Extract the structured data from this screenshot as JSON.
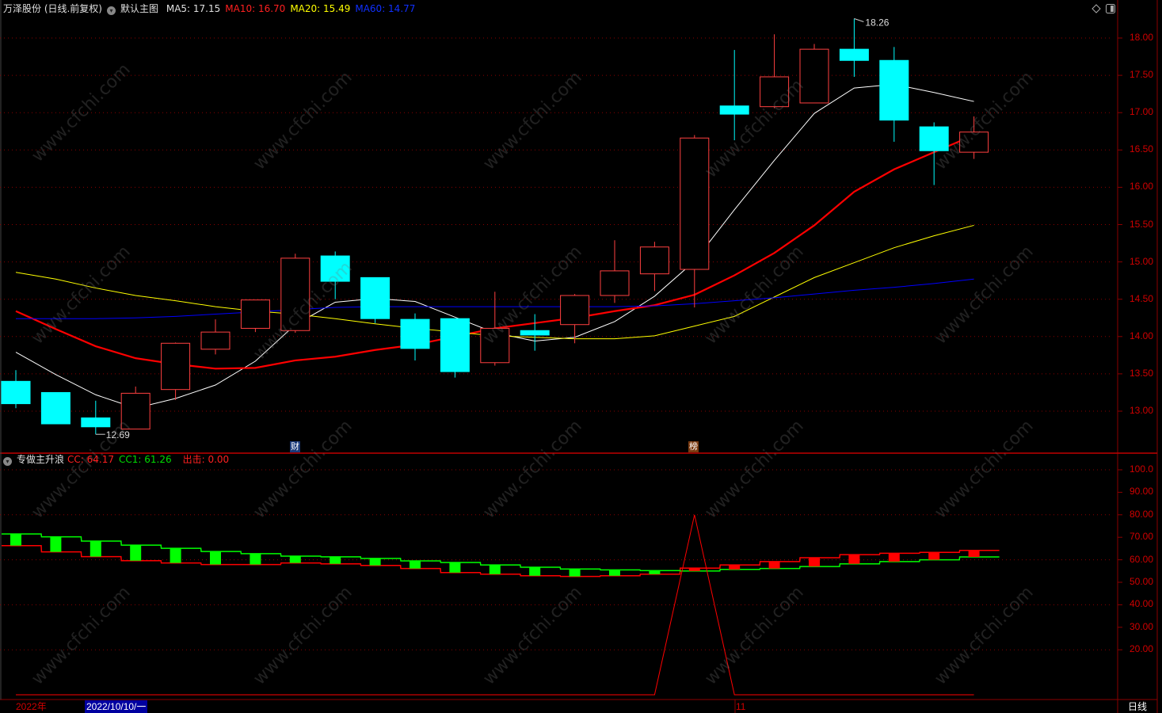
{
  "header": {
    "stock": "万泽股份 (日线.前复权)",
    "template": "默认主图",
    "ma5": "MA5: 17.15",
    "ma10": "MA10: 16.70",
    "ma20": "MA20: 15.49",
    "ma60": "MA60: 14.77"
  },
  "indicator": {
    "name": "专做主升浪",
    "cc": "CC: 64.17",
    "cc1": "CC1: 61.26",
    "strike": "出击: 0.00"
  },
  "colors": {
    "up": "#ff4040",
    "down": "#00ffff",
    "ma5": "#ffffff",
    "ma10": "#ff0000",
    "ma20": "#ffff00",
    "ma60": "#0000ff",
    "grid": "#8b0000",
    "axis": "#d00000",
    "cc": "#ff0000",
    "cc1": "#00ff00"
  },
  "icons": {
    "top_right": [
      "diamond-icon",
      "panel-toggle-icon"
    ],
    "collapse": "chevron-down-icon"
  },
  "main_axis": {
    "ticks": [
      "18.00",
      "17.50",
      "17.00",
      "16.50",
      "16.00",
      "15.50",
      "15.00",
      "14.50",
      "14.00",
      "13.50",
      "13.00"
    ]
  },
  "lower_axis": {
    "ticks": [
      "100.0",
      "90.00",
      "80.00",
      "70.00",
      "60.00",
      "50.00",
      "40.00",
      "30.00",
      "20.00"
    ]
  },
  "annotations": {
    "high": "18.26",
    "low": "12.69"
  },
  "markers": [
    {
      "label": "财",
      "candle": 7
    },
    {
      "label": "榜",
      "candle": 17
    }
  ],
  "bottom_axis": {
    "year": "2022年",
    "cursor_date": "2022/10/10/一",
    "month": "11",
    "period": "日线"
  },
  "watermark": "www.cfchi.com",
  "chart_data": [
    {
      "type": "candlestick",
      "ylim": [
        12.5,
        18.3
      ],
      "candles": [
        {
          "o": 13.4,
          "h": 13.55,
          "l": 13.04,
          "c": 13.1
        },
        {
          "o": 13.25,
          "h": 13.25,
          "l": 12.83,
          "c": 12.83
        },
        {
          "o": 12.91,
          "h": 13.14,
          "l": 12.69,
          "c": 12.79
        },
        {
          "o": 12.76,
          "h": 13.33,
          "l": 12.76,
          "c": 13.24
        },
        {
          "o": 13.29,
          "h": 13.92,
          "l": 13.15,
          "c": 13.91
        },
        {
          "o": 13.83,
          "h": 14.23,
          "l": 13.76,
          "c": 14.06
        },
        {
          "o": 14.11,
          "h": 14.49,
          "l": 14.06,
          "c": 14.49
        },
        {
          "o": 14.08,
          "h": 15.11,
          "l": 14.05,
          "c": 15.05
        },
        {
          "o": 15.08,
          "h": 15.14,
          "l": 14.5,
          "c": 14.74
        },
        {
          "o": 14.79,
          "h": 14.79,
          "l": 14.18,
          "c": 14.24
        },
        {
          "o": 14.23,
          "h": 14.31,
          "l": 13.68,
          "c": 13.84
        },
        {
          "o": 14.24,
          "h": 14.24,
          "l": 13.45,
          "c": 13.53
        },
        {
          "o": 13.65,
          "h": 14.6,
          "l": 13.61,
          "c": 14.11
        },
        {
          "o": 14.08,
          "h": 14.3,
          "l": 13.81,
          "c": 14.02
        },
        {
          "o": 14.16,
          "h": 14.57,
          "l": 13.91,
          "c": 14.55
        },
        {
          "o": 14.55,
          "h": 15.29,
          "l": 14.45,
          "c": 14.88
        },
        {
          "o": 14.84,
          "h": 15.27,
          "l": 14.61,
          "c": 15.2
        },
        {
          "o": 14.9,
          "h": 16.7,
          "l": 14.39,
          "c": 16.66
        },
        {
          "o": 17.09,
          "h": 17.84,
          "l": 16.63,
          "c": 16.98
        },
        {
          "o": 17.08,
          "h": 18.05,
          "l": 17.06,
          "c": 17.48
        },
        {
          "o": 17.13,
          "h": 17.92,
          "l": 17.13,
          "c": 17.85
        },
        {
          "o": 17.85,
          "h": 18.26,
          "l": 17.48,
          "c": 17.7
        },
        {
          "o": 17.7,
          "h": 17.88,
          "l": 16.61,
          "c": 16.9
        },
        {
          "o": 16.81,
          "h": 16.87,
          "l": 16.03,
          "c": 16.49
        },
        {
          "o": 16.47,
          "h": 16.95,
          "l": 16.38,
          "c": 16.74
        }
      ],
      "series": [
        {
          "name": "MA5",
          "values": [
            13.79,
            13.49,
            13.22,
            13.04,
            13.17,
            13.35,
            13.67,
            14.16,
            14.46,
            14.51,
            14.47,
            14.26,
            14.05,
            13.94,
            13.99,
            14.2,
            14.54,
            15.01,
            15.7,
            16.36,
            16.99,
            17.33,
            17.38,
            17.27,
            17.15
          ]
        },
        {
          "name": "MA10",
          "values": [
            14.34,
            14.1,
            13.87,
            13.71,
            13.63,
            13.57,
            13.58,
            13.68,
            13.73,
            13.82,
            13.89,
            14.0,
            14.11,
            14.18,
            14.25,
            14.34,
            14.42,
            14.56,
            14.82,
            15.12,
            15.49,
            15.94,
            16.24,
            16.47,
            16.7
          ]
        },
        {
          "name": "MA20",
          "values": [
            14.86,
            14.77,
            14.65,
            14.55,
            14.48,
            14.4,
            14.34,
            14.3,
            14.24,
            14.17,
            14.11,
            14.06,
            14.01,
            13.99,
            13.97,
            13.97,
            14.01,
            14.14,
            14.27,
            14.53,
            14.79,
            14.99,
            15.19,
            15.35,
            15.49
          ]
        },
        {
          "name": "MA60",
          "values": [
            14.24,
            14.24,
            14.24,
            14.25,
            14.27,
            14.3,
            14.33,
            14.36,
            14.39,
            14.4,
            14.4,
            14.4,
            14.4,
            14.4,
            14.4,
            14.4,
            14.41,
            14.44,
            14.48,
            14.52,
            14.57,
            14.62,
            14.66,
            14.71,
            14.77
          ]
        }
      ]
    },
    {
      "type": "line",
      "ylim": [
        0,
        100
      ],
      "series": [
        {
          "name": "CC",
          "values": [
            66.3,
            63.5,
            61.4,
            59.6,
            58.6,
            57.9,
            57.9,
            58.6,
            58.2,
            57.5,
            56.1,
            54.3,
            53.6,
            52.9,
            52.6,
            52.9,
            53.6,
            56.3,
            57.7,
            59.2,
            60.9,
            62.3,
            62.9,
            63.3,
            64.17
          ]
        },
        {
          "name": "CC1",
          "values": [
            71.5,
            70.2,
            68.3,
            66.5,
            65.1,
            63.7,
            62.7,
            61.6,
            61.3,
            60.6,
            59.5,
            58.8,
            57.7,
            56.7,
            55.9,
            55.5,
            55.2,
            55.0,
            55.7,
            56.1,
            57.0,
            58.2,
            59.2,
            60.0,
            61.26
          ]
        },
        {
          "name": "出击",
          "values": [
            0,
            0,
            0,
            0,
            0,
            0,
            0,
            0,
            0,
            0,
            0,
            0,
            0,
            0,
            0,
            0,
            0,
            80,
            0,
            0,
            0,
            0,
            0,
            0,
            0
          ]
        }
      ]
    }
  ]
}
